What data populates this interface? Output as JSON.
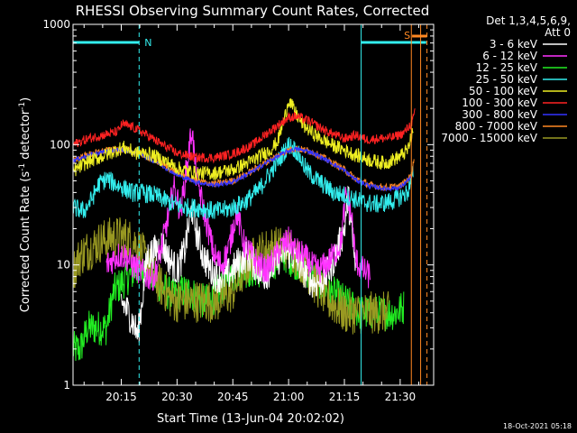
{
  "chart_data": {
    "type": "line",
    "title": "RHESSI Observing Summary Count Rates, Corrected",
    "xlabel": "Start Time (13-Jun-04 20:02:02)",
    "ylabel": "Corrected Count Rate (s",
    "ylabel_sup1": "-1",
    "ylabel_mid": " detector",
    "ylabel_sup2": "-1",
    "ylabel_end": ")",
    "yscale": "log",
    "ylim": [
      1,
      1000
    ],
    "yticks": [
      {
        "v": 1,
        "label": "1"
      },
      {
        "v": 10,
        "label": "10"
      },
      {
        "v": 100,
        "label": "100"
      },
      {
        "v": 1000,
        "label": "1000"
      }
    ],
    "xlim": [
      2.03,
      99.0
    ],
    "xticks": [
      {
        "v": 15,
        "label": "20:15"
      },
      {
        "v": 30,
        "label": "20:30"
      },
      {
        "v": 45,
        "label": "20:45"
      },
      {
        "v": 60,
        "label": "21:00"
      },
      {
        "v": 75,
        "label": "21:15"
      },
      {
        "v": 90,
        "label": "21:30"
      }
    ],
    "footer": "18-Oct-2021 05:18",
    "legend": {
      "header1": "Det 1,3,4,5,6,9,",
      "header2": "Att 0",
      "items": [
        {
          "label": "3 - 6 keV",
          "color": "#ffffff"
        },
        {
          "label": "6 - 12 keV",
          "color": "#ff33ff"
        },
        {
          "label": "12 - 25 keV",
          "color": "#22ee22"
        },
        {
          "label": "25 - 50 keV",
          "color": "#33eeee"
        },
        {
          "label": "50 - 100 keV",
          "color": "#eeee22"
        },
        {
          "label": "100 - 300 keV",
          "color": "#ff2222"
        },
        {
          "label": "300 - 800 keV",
          "color": "#3333ff"
        },
        {
          "label": "800 - 7000 keV",
          "color": "#ff8822"
        },
        {
          "label": "7000 - 15000 keV",
          "color": "#999922"
        }
      ]
    },
    "annotations": {
      "N": {
        "label": "N",
        "color": "#33eeee",
        "x_start": 2.03,
        "x_end": 19.8,
        "x_dash": 19.8
      },
      "S": {
        "label": "S",
        "color": "#ff8822",
        "x_start": 93.2,
        "x_end": 97.2,
        "x_dash": 97.2
      },
      "cyan_segment_x": [
        79.5,
        97.0
      ],
      "cyan_solid_x": 79.5,
      "orange_solid_x": [
        93.0,
        95.5
      ]
    },
    "series": [
      {
        "name": "100 - 300 keV",
        "color": "#ff2222",
        "noise": 0.04,
        "points": [
          [
            2.03,
            100
          ],
          [
            6,
            112
          ],
          [
            10,
            120
          ],
          [
            14,
            128
          ],
          [
            15.2,
            148
          ],
          [
            18,
            140
          ],
          [
            21,
            125
          ],
          [
            26,
            100
          ],
          [
            30,
            85
          ],
          [
            35,
            78
          ],
          [
            40,
            78
          ],
          [
            45,
            84
          ],
          [
            50,
            98
          ],
          [
            55,
            130
          ],
          [
            60,
            168
          ],
          [
            62,
            172
          ],
          [
            65,
            160
          ],
          [
            70,
            130
          ],
          [
            75,
            112
          ],
          [
            78,
            120
          ],
          [
            81,
            110
          ],
          [
            84,
            112
          ],
          [
            88,
            115
          ],
          [
            91,
            125
          ],
          [
            93,
            150
          ],
          [
            94,
            185
          ]
        ]
      },
      {
        "name": "50 - 100 keV",
        "color": "#eeee22",
        "noise": 0.06,
        "points": [
          [
            2.03,
            60
          ],
          [
            6,
            72
          ],
          [
            10,
            80
          ],
          [
            15.5,
            95
          ],
          [
            19,
            85
          ],
          [
            22,
            85
          ],
          [
            26,
            75
          ],
          [
            30,
            64
          ],
          [
            35,
            58
          ],
          [
            40,
            58
          ],
          [
            45,
            62
          ],
          [
            50,
            73
          ],
          [
            55,
            90
          ],
          [
            57,
            105
          ],
          [
            59,
            170
          ],
          [
            60,
            238
          ],
          [
            62,
            180
          ],
          [
            64,
            145
          ],
          [
            68,
            115
          ],
          [
            72,
            98
          ],
          [
            75,
            90
          ],
          [
            78,
            82
          ],
          [
            82,
            74
          ],
          [
            86,
            70
          ],
          [
            90,
            80
          ],
          [
            92,
            90
          ],
          [
            93.5,
            130
          ]
        ]
      },
      {
        "name": "800 - 7000 keV",
        "color": "#ff8822",
        "noise": 0.03,
        "points": [
          [
            2.03,
            75
          ],
          [
            6,
            82
          ],
          [
            10,
            88
          ],
          [
            15,
            92
          ],
          [
            20,
            85
          ],
          [
            25,
            72
          ],
          [
            30,
            58
          ],
          [
            35,
            50
          ],
          [
            40,
            47
          ],
          [
            45,
            50
          ],
          [
            50,
            60
          ],
          [
            55,
            75
          ],
          [
            60,
            90
          ],
          [
            62,
            93
          ],
          [
            66,
            88
          ],
          [
            70,
            76
          ],
          [
            75,
            62
          ],
          [
            78,
            52
          ],
          [
            82,
            46
          ],
          [
            86,
            44
          ],
          [
            90,
            45
          ],
          [
            93,
            55
          ],
          [
            93.8,
            80
          ]
        ]
      },
      {
        "name": "300 - 800 keV",
        "color": "#3333ff",
        "noise": 0.02,
        "points": [
          [
            2.03,
            74
          ],
          [
            6,
            81
          ],
          [
            10,
            87
          ],
          [
            15,
            91
          ],
          [
            20,
            84
          ],
          [
            25,
            70
          ],
          [
            30,
            56
          ],
          [
            35,
            49
          ],
          [
            40,
            46
          ],
          [
            45,
            49
          ],
          [
            50,
            59
          ],
          [
            55,
            74
          ],
          [
            60,
            89
          ],
          [
            62,
            92
          ],
          [
            66,
            87
          ],
          [
            70,
            75
          ],
          [
            75,
            61
          ],
          [
            78,
            51
          ],
          [
            82,
            45
          ],
          [
            86,
            43
          ],
          [
            90,
            44
          ],
          [
            93,
            54
          ]
        ]
      },
      {
        "name": "25 - 50 keV",
        "color": "#33eeee",
        "noise": 0.08,
        "points": [
          [
            2.03,
            30
          ],
          [
            5,
            28
          ],
          [
            7,
            35
          ],
          [
            9,
            47
          ],
          [
            11,
            52
          ],
          [
            14,
            46
          ],
          [
            18,
            40
          ],
          [
            20,
            40
          ],
          [
            24,
            38
          ],
          [
            28,
            33
          ],
          [
            32,
            30
          ],
          [
            35,
            30
          ],
          [
            38,
            29
          ],
          [
            40,
            28
          ],
          [
            44,
            29
          ],
          [
            48,
            33
          ],
          [
            52,
            42
          ],
          [
            55,
            58
          ],
          [
            58,
            80
          ],
          [
            60,
            100
          ],
          [
            62,
            90
          ],
          [
            65,
            60
          ],
          [
            68,
            50
          ],
          [
            72,
            40
          ],
          [
            75,
            38
          ],
          [
            78,
            35
          ],
          [
            80,
            33
          ],
          [
            84,
            32
          ],
          [
            88,
            34
          ],
          [
            92,
            40
          ],
          [
            93.5,
            58
          ]
        ]
      },
      {
        "name": "6 - 12 keV",
        "color": "#ff33ff",
        "noise": 0.12,
        "points": [
          [
            11,
            10
          ],
          [
            14,
            12
          ],
          [
            16,
            12
          ],
          [
            18,
            10
          ],
          [
            20,
            9
          ],
          [
            22,
            8
          ],
          [
            24,
            8
          ],
          [
            26,
            15
          ],
          [
            28,
            28
          ],
          [
            29,
            45
          ],
          [
            31,
            28
          ],
          [
            33,
            80
          ],
          [
            34,
            138
          ],
          [
            35,
            60
          ],
          [
            37,
            30
          ],
          [
            40,
            12
          ],
          [
            42,
            10
          ],
          [
            44,
            14
          ],
          [
            46,
            28
          ],
          [
            48,
            15
          ],
          [
            50,
            12
          ],
          [
            52,
            10
          ],
          [
            54,
            9
          ],
          [
            56,
            11
          ],
          [
            58,
            14
          ],
          [
            60,
            16
          ],
          [
            62,
            13
          ],
          [
            64,
            12
          ],
          [
            66,
            10
          ],
          [
            68,
            9
          ],
          [
            70,
            10
          ],
          [
            72,
            12
          ],
          [
            74,
            15
          ],
          [
            75.5,
            40
          ],
          [
            77,
            25
          ],
          [
            78,
            11
          ],
          [
            80,
            9
          ],
          [
            82,
            8
          ]
        ]
      },
      {
        "name": "3 - 6 keV",
        "color": "#ffffff",
        "noise": 0.14,
        "points": [
          [
            15,
            5
          ],
          [
            17,
            4
          ],
          [
            18,
            3.4
          ],
          [
            19.5,
            2.6
          ],
          [
            22,
            12
          ],
          [
            24,
            13
          ],
          [
            26,
            15
          ],
          [
            28,
            11
          ],
          [
            30,
            9
          ],
          [
            32,
            13
          ],
          [
            34,
            30
          ],
          [
            35,
            20
          ],
          [
            37,
            12
          ],
          [
            39,
            9
          ],
          [
            41,
            8
          ],
          [
            43,
            8
          ],
          [
            45,
            9
          ],
          [
            47,
            11
          ],
          [
            49,
            12
          ],
          [
            51,
            10
          ],
          [
            53,
            8
          ],
          [
            55,
            9
          ],
          [
            57,
            11
          ],
          [
            59,
            13
          ],
          [
            61,
            12
          ],
          [
            63,
            10
          ],
          [
            65,
            8
          ],
          [
            67,
            7
          ],
          [
            69,
            7.5
          ],
          [
            71,
            9
          ],
          [
            73,
            13
          ],
          [
            75,
            20
          ],
          [
            76,
            38
          ],
          [
            77,
            18
          ],
          [
            78,
            9
          ]
        ]
      },
      {
        "name": "12 - 25 keV",
        "color": "#22ee22",
        "noise": 0.15,
        "points": [
          [
            2.03,
            2
          ],
          [
            4,
            2
          ],
          [
            6,
            3
          ],
          [
            9,
            3
          ],
          [
            11,
            3
          ],
          [
            13,
            6
          ],
          [
            15,
            7
          ],
          [
            17,
            8
          ],
          [
            19,
            9
          ],
          [
            21,
            10
          ],
          [
            23,
            8
          ],
          [
            25,
            7
          ],
          [
            27,
            6
          ],
          [
            29,
            5.5
          ],
          [
            31,
            6
          ],
          [
            33,
            6
          ],
          [
            35,
            5.5
          ],
          [
            37,
            5
          ],
          [
            39,
            5
          ],
          [
            41,
            6
          ],
          [
            43,
            7
          ],
          [
            45,
            8
          ],
          [
            47,
            9
          ],
          [
            49,
            9
          ],
          [
            51,
            9
          ],
          [
            53,
            9
          ],
          [
            55,
            10
          ],
          [
            57,
            11
          ],
          [
            59,
            12
          ],
          [
            61,
            11
          ],
          [
            63,
            10
          ],
          [
            65,
            9
          ],
          [
            67,
            8
          ],
          [
            69,
            7
          ],
          [
            71,
            6
          ],
          [
            73,
            5.5
          ],
          [
            75,
            5
          ],
          [
            77,
            4.5
          ],
          [
            79,
            4
          ],
          [
            81,
            4
          ],
          [
            83,
            4
          ],
          [
            85,
            4
          ],
          [
            87,
            4
          ],
          [
            89,
            4
          ],
          [
            91,
            4.5
          ]
        ]
      },
      {
        "name": "7000 - 15000 keV",
        "color": "#999922",
        "noise": 0.18,
        "points": [
          [
            2.03,
            9
          ],
          [
            4,
            12
          ],
          [
            7,
            14
          ],
          [
            10,
            16
          ],
          [
            13,
            17
          ],
          [
            16,
            17
          ],
          [
            19,
            15
          ],
          [
            21,
            12
          ],
          [
            23,
            9
          ],
          [
            25,
            7
          ],
          [
            27,
            6
          ],
          [
            29,
            5
          ],
          [
            31,
            5
          ],
          [
            33,
            5
          ],
          [
            35,
            5
          ],
          [
            37,
            5
          ],
          [
            39,
            5
          ],
          [
            41,
            5
          ],
          [
            43,
            5.5
          ],
          [
            45,
            6
          ],
          [
            47,
            8
          ],
          [
            49,
            10
          ],
          [
            51,
            12
          ],
          [
            53,
            13
          ],
          [
            55,
            14
          ],
          [
            57,
            14
          ],
          [
            59,
            14
          ],
          [
            61,
            13
          ],
          [
            63,
            11
          ],
          [
            65,
            9
          ],
          [
            67,
            7
          ],
          [
            69,
            6
          ],
          [
            71,
            5
          ],
          [
            73,
            4.5
          ],
          [
            75,
            4
          ],
          [
            77,
            4
          ],
          [
            79,
            4
          ],
          [
            81,
            4
          ],
          [
            83,
            4
          ],
          [
            85,
            4
          ],
          [
            87,
            4
          ]
        ]
      }
    ]
  }
}
